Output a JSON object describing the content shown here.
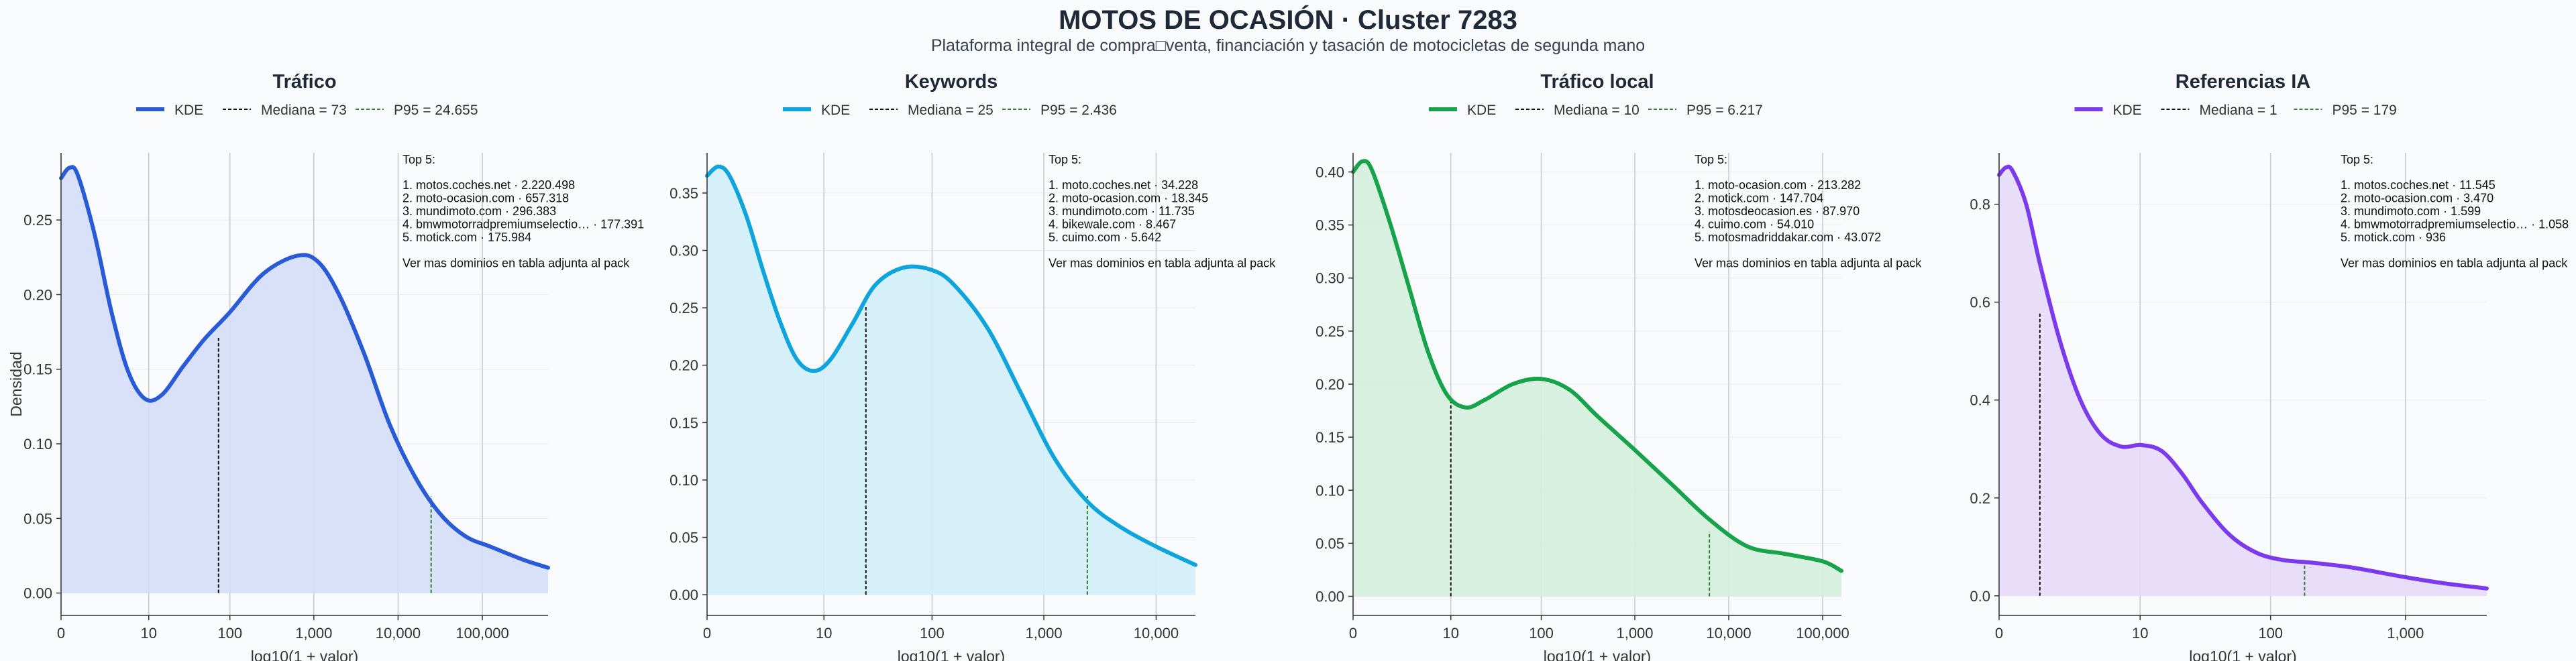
{
  "suptitle": "MOTOS DE OCASIÓN · Cluster 7283",
  "subtitle": "Plataforma integral de compra□venta, financiación y tasación de motocicletas de segunda mano",
  "chart_data": [
    {
      "type": "area",
      "title": "Tráfico",
      "xlabel": "log10(1 + valor)",
      "ylabel": "Densidad",
      "color": "#2a5bd7",
      "fill": "#d4def7",
      "xlim": [
        0,
        5.78
      ],
      "ylim": [
        -0.015,
        0.295
      ],
      "xticks": [
        {
          "v": 0,
          "label": "0"
        },
        {
          "v": 1.041,
          "label": "10"
        },
        {
          "v": 2.004,
          "label": "100"
        },
        {
          "v": 3.0,
          "label": "1,000"
        },
        {
          "v": 4.0,
          "label": "10,000"
        },
        {
          "v": 5.0,
          "label": "100,000"
        }
      ],
      "yticks": [
        0.0,
        0.05,
        0.1,
        0.15,
        0.2,
        0.25
      ],
      "ytick_labels": [
        "0.00",
        "0.05",
        "0.10",
        "0.15",
        "0.20",
        "0.25"
      ],
      "kde": {
        "x": [
          0,
          0.1,
          0.2,
          0.4,
          0.6,
          0.8,
          1.0,
          1.2,
          1.45,
          1.7,
          2.0,
          2.4,
          2.8,
          3.05,
          3.3,
          3.6,
          3.9,
          4.2,
          4.5,
          4.8,
          5.1,
          5.5,
          5.78
        ],
        "y": [
          0.278,
          0.285,
          0.28,
          0.24,
          0.188,
          0.148,
          0.13,
          0.133,
          0.152,
          0.17,
          0.188,
          0.214,
          0.226,
          0.222,
          0.2,
          0.16,
          0.113,
          0.078,
          0.053,
          0.038,
          0.031,
          0.022,
          0.017
        ]
      },
      "median": {
        "x": 1.869,
        "y": 0.171,
        "label": "Mediana = 73"
      },
      "p95": {
        "x": 4.392,
        "y": 0.065,
        "label": "P95 = 24.655"
      },
      "legend_kde": "KDE",
      "top5": {
        "header": "Top 5:",
        "lines": [
          "1. motos.coches.net · 2.220.498",
          "2. moto-ocasion.com · 657.318",
          "3. mundimoto.com · 296.383",
          "4. bmwmotorradpremiumselectio… · 177.391",
          "5. motick.com · 175.984"
        ],
        "footer": "Ver mas dominios en tabla adjunta al pack"
      }
    },
    {
      "type": "area",
      "title": "Keywords",
      "xlabel": "log10(1 + valor)",
      "ylabel": "",
      "color": "#0ea5dc",
      "fill": "#d1eefa",
      "xlim": [
        0,
        4.35
      ],
      "ylim": [
        -0.018,
        0.385
      ],
      "xticks": [
        {
          "v": 0,
          "label": "0"
        },
        {
          "v": 1.041,
          "label": "10"
        },
        {
          "v": 2.004,
          "label": "100"
        },
        {
          "v": 3.0,
          "label": "1,000"
        },
        {
          "v": 4.0,
          "label": "10,000"
        }
      ],
      "yticks": [
        0.0,
        0.05,
        0.1,
        0.15,
        0.2,
        0.25,
        0.3,
        0.35
      ],
      "ytick_labels": [
        "0.00",
        "0.05",
        "0.10",
        "0.15",
        "0.20",
        "0.25",
        "0.30",
        "0.35"
      ],
      "kde": {
        "x": [
          0,
          0.1,
          0.2,
          0.35,
          0.5,
          0.65,
          0.8,
          0.95,
          1.1,
          1.3,
          1.5,
          1.75,
          2.0,
          2.2,
          2.5,
          2.8,
          3.1,
          3.4,
          3.7,
          4.0,
          4.35
        ],
        "y": [
          0.365,
          0.373,
          0.365,
          0.33,
          0.282,
          0.238,
          0.205,
          0.195,
          0.205,
          0.237,
          0.27,
          0.285,
          0.283,
          0.27,
          0.232,
          0.175,
          0.118,
          0.08,
          0.058,
          0.042,
          0.026
        ]
      },
      "median": {
        "x": 1.415,
        "y": 0.251,
        "label": "Mediana = 25"
      },
      "p95": {
        "x": 3.387,
        "y": 0.086,
        "label": "P95 = 2.436"
      },
      "legend_kde": "KDE",
      "top5": {
        "header": "Top 5:",
        "lines": [
          "1. moto.coches.net · 34.228",
          "2. moto-ocasion.com · 18.345",
          "3. mundimoto.com · 11.735",
          "4. bikewale.com · 8.467",
          "5. cuimo.com · 5.642"
        ],
        "footer": "Ver mas dominios en tabla adjunta al pack"
      }
    },
    {
      "type": "area",
      "title": "Tráfico local",
      "xlabel": "log10(1 + valor)",
      "ylabel": "",
      "color": "#16a34a",
      "fill": "#d3eedb",
      "xlim": [
        0,
        5.2
      ],
      "ylim": [
        -0.018,
        0.418
      ],
      "xticks": [
        {
          "v": 0,
          "label": "0"
        },
        {
          "v": 1.041,
          "label": "10"
        },
        {
          "v": 2.004,
          "label": "100"
        },
        {
          "v": 3.0,
          "label": "1,000"
        },
        {
          "v": 4.0,
          "label": "10,000"
        },
        {
          "v": 5.0,
          "label": "100,000"
        }
      ],
      "yticks": [
        0.0,
        0.05,
        0.1,
        0.15,
        0.2,
        0.25,
        0.3,
        0.35,
        0.4
      ],
      "ytick_labels": [
        "0.00",
        "0.05",
        "0.10",
        "0.15",
        "0.20",
        "0.25",
        "0.30",
        "0.35",
        "0.40"
      ],
      "kde": {
        "x": [
          0,
          0.1,
          0.2,
          0.4,
          0.6,
          0.8,
          1.0,
          1.2,
          1.4,
          1.7,
          2.0,
          2.3,
          2.6,
          3.0,
          3.4,
          3.8,
          4.2,
          4.6,
          5.0,
          5.2
        ],
        "y": [
          0.4,
          0.41,
          0.402,
          0.35,
          0.29,
          0.23,
          0.19,
          0.178,
          0.185,
          0.2,
          0.205,
          0.195,
          0.17,
          0.138,
          0.105,
          0.072,
          0.047,
          0.04,
          0.033,
          0.024
        ]
      },
      "median": {
        "x": 1.041,
        "y": 0.184,
        "label": "Mediana = 10"
      },
      "p95": {
        "x": 3.794,
        "y": 0.061,
        "label": "P95 = 6.217"
      },
      "legend_kde": "KDE",
      "top5": {
        "header": "Top 5:",
        "lines": [
          "1. moto-ocasion.com · 213.282",
          "2. motick.com · 147.704",
          "3. motosdeocasion.es · 87.970",
          "4. cuimo.com · 54.010",
          "5. motosmadriddakar.com · 43.072"
        ],
        "footer": "Ver mas dominios en tabla adjunta al pack"
      }
    },
    {
      "type": "area",
      "title": "Referencias IA",
      "xlabel": "log10(1 + valor)",
      "ylabel": "",
      "color": "#7c3aed",
      "fill": "#e6dafa",
      "xlim": [
        0,
        3.6
      ],
      "ylim": [
        -0.04,
        0.905
      ],
      "xticks": [
        {
          "v": 0,
          "label": "0"
        },
        {
          "v": 1.041,
          "label": "10"
        },
        {
          "v": 2.004,
          "label": "100"
        },
        {
          "v": 3.0,
          "label": "1,000"
        }
      ],
      "yticks": [
        0.0,
        0.2,
        0.4,
        0.6,
        0.8
      ],
      "ytick_labels": [
        "0.0",
        "0.2",
        "0.4",
        "0.6",
        "0.8"
      ],
      "kde": {
        "x": [
          0,
          0.05,
          0.1,
          0.2,
          0.3,
          0.45,
          0.6,
          0.75,
          0.9,
          1.05,
          1.2,
          1.35,
          1.5,
          1.7,
          1.9,
          2.1,
          2.3,
          2.6,
          3.0,
          3.3,
          3.6
        ],
        "y": [
          0.86,
          0.875,
          0.868,
          0.8,
          0.68,
          0.52,
          0.4,
          0.33,
          0.305,
          0.308,
          0.296,
          0.25,
          0.19,
          0.125,
          0.088,
          0.073,
          0.068,
          0.058,
          0.038,
          0.025,
          0.015
        ]
      },
      "median": {
        "x": 0.301,
        "y": 0.578,
        "label": "Mediana = 1"
      },
      "p95": {
        "x": 2.255,
        "y": 0.069,
        "label": "P95 = 179"
      },
      "legend_kde": "KDE",
      "top5": {
        "header": "Top 5:",
        "lines": [
          "1. motos.coches.net · 11.545",
          "2. moto-ocasion.com · 3.470",
          "3. mundimoto.com · 1.599",
          "4. bmwmotorradpremiumselectio… · 1.058",
          "5. motick.com · 936"
        ],
        "footer": "Ver mas dominios en tabla adjunta al pack"
      }
    }
  ]
}
